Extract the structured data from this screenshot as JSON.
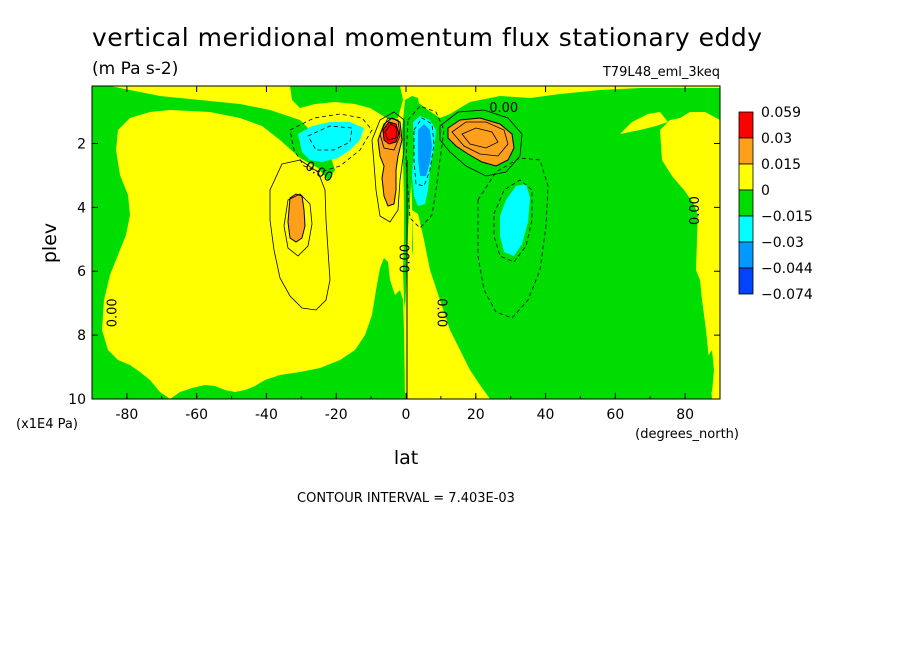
{
  "chart_data": {
    "type": "heatmap",
    "title": "vertical meridional momentum flux stationary eddy",
    "units": "(m Pa s-2)",
    "dataset": "T79L48_eml_3keq",
    "xlabel": "lat",
    "x_units": "(degrees_north)",
    "ylabel": "plev",
    "y_units": "(x1E4 Pa)",
    "xlim": [
      -90,
      90
    ],
    "ylim": [
      10,
      0.2
    ],
    "x_ticks": [
      {
        "value": -80,
        "label": "-80"
      },
      {
        "value": -60,
        "label": "-60"
      },
      {
        "value": -40,
        "label": "-40"
      },
      {
        "value": -20,
        "label": "-20"
      },
      {
        "value": 0,
        "label": "0"
      },
      {
        "value": 20,
        "label": "20"
      },
      {
        "value": 40,
        "label": "40"
      },
      {
        "value": 60,
        "label": "60"
      },
      {
        "value": 80,
        "label": "80"
      }
    ],
    "y_ticks": [
      {
        "value": 2,
        "label": "2"
      },
      {
        "value": 4,
        "label": "4"
      },
      {
        "value": 6,
        "label": "6"
      },
      {
        "value": 8,
        "label": "8"
      },
      {
        "value": 10,
        "label": "10"
      }
    ],
    "contour_interval": "CONTOUR INTERVAL = 7.403E-03",
    "colorbar": {
      "levels": [
        "0.059",
        "0.03",
        "0.015",
        "0",
        "−0.015",
        "−0.03",
        "−0.044",
        "−0.074"
      ],
      "colors": [
        "#ff0000",
        "#ff9f1c",
        "#ffff00",
        "#00dd00",
        "#00ffff",
        "#0099ff",
        "#0044ff"
      ]
    },
    "contour_labels": [
      {
        "text": "0.00",
        "lat": -84,
        "plev": 7.3,
        "rotate": -90
      },
      {
        "text": "0.00",
        "lat": -25,
        "plev": 2.9,
        "rotate": 28
      },
      {
        "text": "0.00",
        "lat": 0,
        "plev": 5.6,
        "rotate": -90
      },
      {
        "text": "0.00",
        "lat": 10,
        "plev": 7.3,
        "rotate": 90
      },
      {
        "text": "0.00",
        "lat": 28,
        "plev": 0.9,
        "rotate": 0
      },
      {
        "text": "0.00",
        "lat": 83,
        "plev": 4.1,
        "rotate": -90
      }
    ],
    "regions": [
      {
        "name": "positive-flux-sh-midlat",
        "color": "#ff9f1c",
        "lat_range": [
          -33,
          -29
        ],
        "plev_range": [
          3.6,
          5.0
        ],
        "max": 0.03
      },
      {
        "name": "negative-flux-sh-upper",
        "color": "#00ffff",
        "lat_range": [
          -28,
          -15
        ],
        "plev_range": [
          1.4,
          2.6
        ],
        "min": -0.03
      },
      {
        "name": "positive-flux-sh-jet-core",
        "color": "#ff0000",
        "lat_range": [
          -7,
          -3
        ],
        "plev_range": [
          1.2,
          2.1
        ],
        "max": 0.059
      },
      {
        "name": "positive-flux-sh-column",
        "color": "#ff9f1c",
        "lat_range": [
          -7,
          -3
        ],
        "plev_range": [
          1.2,
          3.8
        ],
        "max": 0.03
      },
      {
        "name": "negative-flux-equatorial-column",
        "color": "#0099ff",
        "lat_range": [
          3,
          8
        ],
        "plev_range": [
          1.3,
          3.6
        ],
        "min": -0.044
      },
      {
        "name": "positive-flux-nh-upper",
        "color": "#ff9f1c",
        "lat_range": [
          12,
          30
        ],
        "plev_range": [
          1.1,
          2.6
        ],
        "max": 0.03
      },
      {
        "name": "negative-flux-nh-midlat",
        "color": "#00ffff",
        "lat_range": [
          26,
          34
        ],
        "plev_range": [
          3.3,
          5.5
        ],
        "min": -0.03
      },
      {
        "name": "negative-flux-nh-broad",
        "color": "#00dd00",
        "lat_range": [
          5,
          90
        ],
        "plev_range": [
          0.2,
          10
        ],
        "min": -0.015
      },
      {
        "name": "positive-flux-sh-broad",
        "color": "#ffff00",
        "lat_range": [
          -80,
          0
        ],
        "plev_range": [
          0.2,
          10
        ],
        "max": 0.015
      }
    ]
  }
}
